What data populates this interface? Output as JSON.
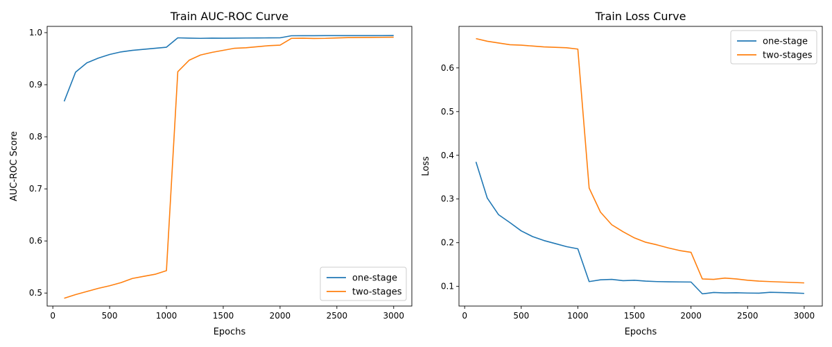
{
  "chart_data": [
    {
      "type": "line",
      "title": "Train AUC-ROC Curve",
      "xlabel": "Epochs",
      "ylabel": "AUC-ROC Score",
      "xlim": [
        -50,
        3160
      ],
      "ylim": [
        0.475,
        1.012
      ],
      "xticks": [
        0,
        500,
        1000,
        1500,
        2000,
        2500,
        3000
      ],
      "yticks": [
        0.5,
        0.6,
        0.7,
        0.8,
        0.9,
        1.0
      ],
      "ytick_labels": [
        "0.5",
        "0.6",
        "0.7",
        "0.8",
        "0.9",
        "1.0"
      ],
      "legend_position": "lower-right",
      "grid": false,
      "x": [
        100,
        200,
        300,
        400,
        500,
        600,
        700,
        800,
        900,
        1000,
        1100,
        1200,
        1300,
        1400,
        1500,
        1600,
        1700,
        1800,
        1900,
        2000,
        2100,
        2200,
        2300,
        2400,
        2500,
        2600,
        2700,
        2800,
        2900,
        3000
      ],
      "series": [
        {
          "name": "one-stage",
          "color": "#1f77b4",
          "values": [
            0.868,
            0.924,
            0.942,
            0.951,
            0.958,
            0.963,
            0.966,
            0.968,
            0.97,
            0.972,
            0.99,
            0.9895,
            0.989,
            0.9895,
            0.9893,
            0.9895,
            0.9897,
            0.9898,
            0.9899,
            0.99,
            0.994,
            0.9941,
            0.9941,
            0.9942,
            0.9943,
            0.9943,
            0.9942,
            0.9943,
            0.9943,
            0.9944
          ]
        },
        {
          "name": "two-stages",
          "color": "#ff7f0e",
          "values": [
            0.49,
            0.497,
            0.503,
            0.509,
            0.514,
            0.52,
            0.528,
            0.532,
            0.536,
            0.543,
            0.925,
            0.947,
            0.957,
            0.962,
            0.966,
            0.97,
            0.971,
            0.973,
            0.975,
            0.976,
            0.989,
            0.9893,
            0.9888,
            0.989,
            0.9898,
            0.9904,
            0.9906,
            0.9908,
            0.991,
            0.9912
          ]
        }
      ]
    },
    {
      "type": "line",
      "title": "Train Loss Curve",
      "xlabel": "Epochs",
      "ylabel": "Loss",
      "xlim": [
        -50,
        3160
      ],
      "ylim": [
        0.055,
        0.695
      ],
      "xticks": [
        0,
        500,
        1000,
        1500,
        2000,
        2500,
        3000
      ],
      "yticks": [
        0.1,
        0.2,
        0.3,
        0.4,
        0.5,
        0.6
      ],
      "ytick_labels": [
        "0.1",
        "0.2",
        "0.3",
        "0.4",
        "0.5",
        "0.6"
      ],
      "legend_position": "upper-right",
      "grid": false,
      "x": [
        100,
        200,
        300,
        400,
        500,
        600,
        700,
        800,
        900,
        1000,
        1100,
        1200,
        1300,
        1400,
        1500,
        1600,
        1700,
        1800,
        1900,
        2000,
        2100,
        2200,
        2300,
        2400,
        2500,
        2600,
        2700,
        2800,
        2900,
        3000
      ],
      "series": [
        {
          "name": "one-stage",
          "color": "#1f77b4",
          "values": [
            0.385,
            0.302,
            0.264,
            0.246,
            0.227,
            0.214,
            0.205,
            0.198,
            0.191,
            0.186,
            0.111,
            0.115,
            0.116,
            0.113,
            0.114,
            0.112,
            0.111,
            0.1105,
            0.1102,
            0.11,
            0.083,
            0.086,
            0.085,
            0.0855,
            0.0848,
            0.0845,
            0.0865,
            0.0858,
            0.085,
            0.084
          ]
        },
        {
          "name": "two-stages",
          "color": "#ff7f0e",
          "values": [
            0.667,
            0.661,
            0.657,
            0.653,
            0.652,
            0.65,
            0.648,
            0.647,
            0.646,
            0.643,
            0.325,
            0.27,
            0.241,
            0.225,
            0.211,
            0.201,
            0.195,
            0.188,
            0.182,
            0.178,
            0.117,
            0.116,
            0.119,
            0.117,
            0.114,
            0.112,
            0.111,
            0.11,
            0.109,
            0.108
          ]
        }
      ]
    }
  ]
}
